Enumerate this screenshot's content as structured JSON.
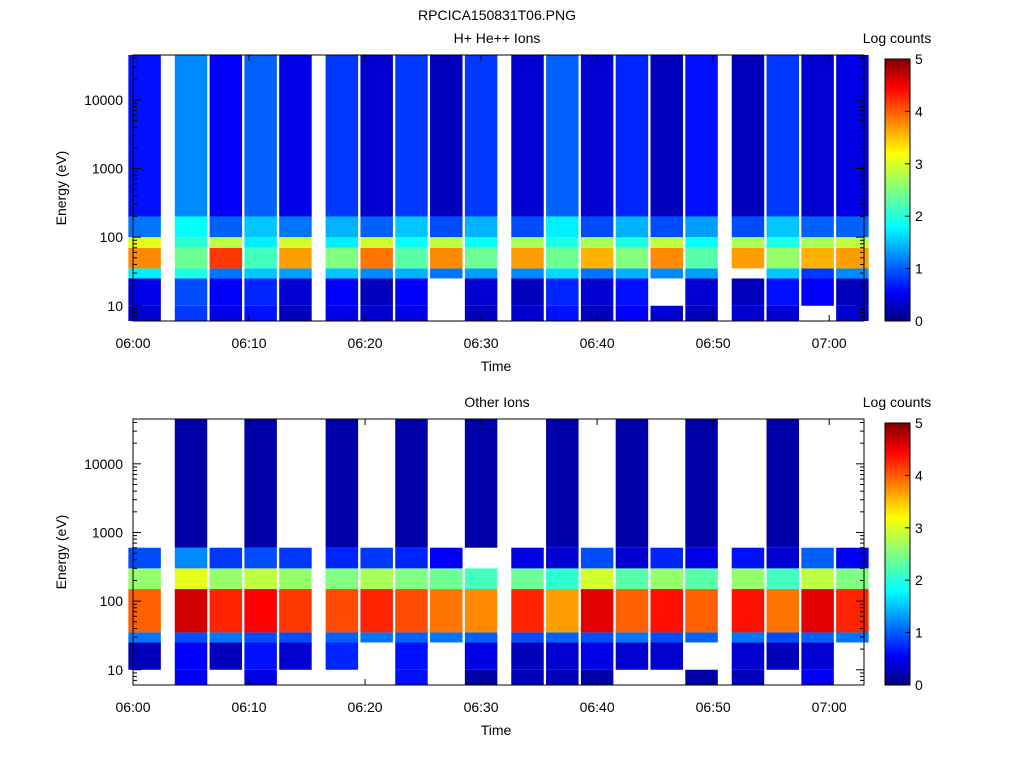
{
  "figure_title": "RPCICA150831T06.PNG",
  "chart_data": [
    {
      "type": "heatmap",
      "title": "H+ He++ Ions",
      "xlabel": "Time",
      "ylabel": "Energy (eV)",
      "y_scale": "log",
      "xlim": [
        "06:00",
        "07:03"
      ],
      "ylim": [
        6,
        45000
      ],
      "x_ticks": [
        "06:00",
        "06:10",
        "06:20",
        "06:30",
        "06:40",
        "06:50",
        "07:00"
      ],
      "y_ticks": [
        "10",
        "100",
        "1000",
        "10000"
      ],
      "colorbar": {
        "label": "Log counts",
        "range": [
          0,
          5
        ],
        "ticks": [
          "0",
          "1",
          "2",
          "3",
          "4",
          "5"
        ]
      },
      "time_bins": [
        "06:01",
        "06:05",
        "06:08",
        "06:11",
        "06:14",
        "06:18",
        "06:21",
        "06:24",
        "06:27",
        "06:30",
        "06:34",
        "06:37",
        "06:40",
        "06:43",
        "06:46",
        "06:49",
        "06:53",
        "06:56",
        "06:59",
        "07:02"
      ],
      "energy_band_log_counts": [
        {
          "energy_range_eV": [
            6,
            10
          ],
          "values": [
            0.4,
            0.9,
            0.5,
            0.7,
            0.3,
            0.5,
            0.4,
            0.5,
            null,
            0.3,
            0.4,
            0.7,
            0.3,
            0.6,
            0.4,
            0.3,
            0.4,
            0.4,
            null,
            0.4
          ]
        },
        {
          "energy_range_eV": [
            10,
            25
          ],
          "values": [
            0.5,
            1.0,
            0.6,
            0.8,
            0.4,
            0.6,
            0.3,
            0.6,
            null,
            0.4,
            0.3,
            0.8,
            0.4,
            0.7,
            null,
            0.4,
            0.3,
            0.7,
            0.6,
            0.3
          ]
        },
        {
          "energy_range_eV": [
            25,
            35
          ],
          "values": [
            1.8,
            2.0,
            1.2,
            1.6,
            1.4,
            1.6,
            1.3,
            1.5,
            1.2,
            1.4,
            1.3,
            1.7,
            1.2,
            1.5,
            1.3,
            1.4,
            null,
            1.6,
            0.9,
            1.3
          ]
        },
        {
          "energy_range_eV": [
            35,
            70
          ],
          "values": [
            3.7,
            2.4,
            4.1,
            2.2,
            3.6,
            2.5,
            3.8,
            2.3,
            3.7,
            2.4,
            3.6,
            2.4,
            3.5,
            2.5,
            3.7,
            2.3,
            3.6,
            2.6,
            3.5,
            3.6
          ]
        },
        {
          "energy_range_eV": [
            70,
            100
          ],
          "values": [
            3.0,
            2.1,
            2.8,
            1.8,
            2.9,
            1.8,
            2.9,
            1.9,
            2.8,
            1.9,
            2.7,
            2.0,
            2.7,
            2.0,
            2.8,
            1.9,
            2.7,
            2.0,
            2.7,
            2.8
          ]
        },
        {
          "energy_range_eV": [
            100,
            200
          ],
          "values": [
            1.2,
            1.9,
            1.1,
            1.6,
            1.2,
            1.5,
            1.1,
            1.6,
            1.0,
            1.5,
            1.0,
            1.8,
            1.0,
            1.5,
            1.0,
            1.4,
            1.0,
            1.6,
            1.1,
            1.1
          ]
        },
        {
          "energy_range_eV": [
            200,
            45000
          ],
          "values": [
            0.7,
            1.3,
            0.6,
            1.1,
            0.5,
            0.9,
            0.4,
            0.9,
            0.3,
            0.9,
            0.4,
            1.1,
            0.4,
            0.8,
            0.3,
            0.7,
            0.3,
            0.9,
            0.4,
            0.5
          ]
        }
      ]
    },
    {
      "type": "heatmap",
      "title": "Other Ions",
      "xlabel": "Time",
      "ylabel": "Energy (eV)",
      "y_scale": "log",
      "xlim": [
        "06:00",
        "07:03"
      ],
      "ylim": [
        6,
        45000
      ],
      "x_ticks": [
        "06:00",
        "06:10",
        "06:20",
        "06:30",
        "06:40",
        "06:50",
        "07:00"
      ],
      "y_ticks": [
        "10",
        "100",
        "1000",
        "10000"
      ],
      "colorbar": {
        "label": "Log counts",
        "range": [
          0,
          5
        ],
        "ticks": [
          "0",
          "1",
          "2",
          "3",
          "4",
          "5"
        ]
      },
      "time_bins": [
        "06:01",
        "06:05",
        "06:08",
        "06:11",
        "06:14",
        "06:18",
        "06:21",
        "06:24",
        "06:27",
        "06:30",
        "06:34",
        "06:37",
        "06:40",
        "06:43",
        "06:46",
        "06:49",
        "06:53",
        "06:56",
        "06:59",
        "07:02"
      ],
      "energy_band_log_counts": [
        {
          "energy_range_eV": [
            6,
            10
          ],
          "values": [
            null,
            0.6,
            null,
            0.5,
            null,
            null,
            null,
            0.7,
            null,
            0.2,
            0.3,
            0.3,
            0.2,
            null,
            null,
            0.2,
            0.3,
            null,
            0.6,
            null
          ]
        },
        {
          "energy_range_eV": [
            10,
            25
          ],
          "values": [
            0.3,
            0.6,
            0.3,
            0.7,
            0.4,
            0.8,
            null,
            0.7,
            null,
            0.5,
            0.3,
            0.4,
            0.5,
            0.4,
            0.4,
            null,
            0.4,
            0.3,
            0.4,
            null
          ]
        },
        {
          "energy_range_eV": [
            25,
            35
          ],
          "values": [
            1.2,
            1.0,
            1.2,
            1.0,
            1.0,
            1.1,
            1.2,
            1.1,
            1.2,
            1.1,
            1.0,
            1.1,
            1.0,
            1.2,
            1.0,
            1.1,
            1.2,
            1.0,
            1.1,
            1.2
          ]
        },
        {
          "energy_range_eV": [
            35,
            150
          ],
          "values": [
            3.9,
            4.6,
            4.2,
            4.4,
            4.1,
            4.0,
            4.2,
            4.0,
            3.8,
            3.7,
            4.2,
            3.6,
            4.5,
            3.9,
            4.3,
            3.9,
            4.3,
            3.8,
            4.5,
            4.2
          ]
        },
        {
          "energy_range_eV": [
            150,
            300
          ],
          "values": [
            2.6,
            3.0,
            2.6,
            2.8,
            2.6,
            2.5,
            2.7,
            2.5,
            2.4,
            2.2,
            2.4,
            2.1,
            2.9,
            2.3,
            2.6,
            2.3,
            2.6,
            2.2,
            2.8,
            2.5
          ]
        },
        {
          "energy_range_eV": [
            300,
            600
          ],
          "values": [
            1.0,
            1.3,
            0.9,
            1.0,
            0.9,
            0.8,
            0.9,
            0.8,
            0.6,
            null,
            0.5,
            0.4,
            1.0,
            0.4,
            0.8,
            0.5,
            0.7,
            0.4,
            1.1,
            0.6
          ]
        },
        {
          "energy_range_eV": [
            600,
            45000
          ],
          "values": [
            null,
            0.2,
            null,
            0.2,
            null,
            0.2,
            null,
            0.2,
            null,
            0.2,
            null,
            0.2,
            null,
            0.2,
            null,
            0.2,
            null,
            0.2,
            null,
            null
          ]
        }
      ]
    }
  ]
}
